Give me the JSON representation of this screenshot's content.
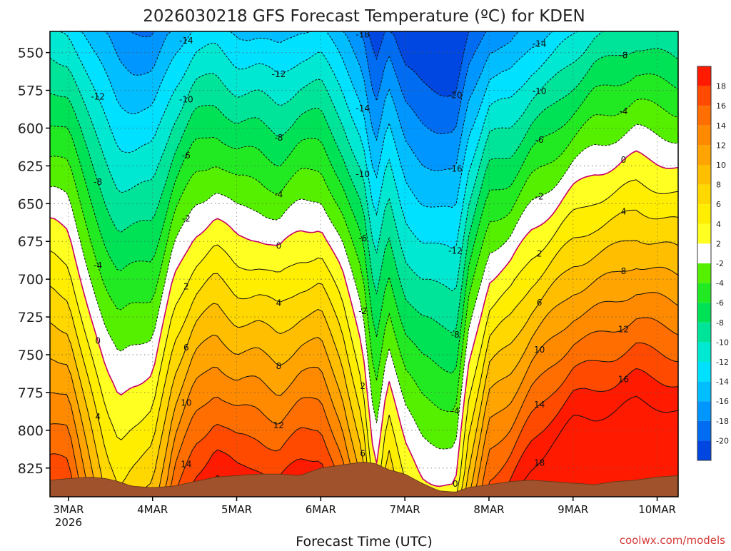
{
  "chart_data": {
    "type": "heatmap",
    "title": "2026030218 GFS Forecast Temperature (ºC) for KDEN",
    "xlabel": "Forecast Time (UTC)",
    "ylabel": "",
    "credit": "coolwx.com/models",
    "x_ticks": [
      {
        "value": 0,
        "label": "3MAR",
        "sub": "2026"
      },
      {
        "value": 1,
        "label": "4MAR",
        "sub": ""
      },
      {
        "value": 2,
        "label": "5MAR",
        "sub": ""
      },
      {
        "value": 3,
        "label": "6MAR",
        "sub": ""
      },
      {
        "value": 4,
        "label": "7MAR",
        "sub": ""
      },
      {
        "value": 5,
        "label": "8MAR",
        "sub": ""
      },
      {
        "value": 6,
        "label": "9MAR",
        "sub": ""
      },
      {
        "value": 7,
        "label": "10MAR",
        "sub": ""
      }
    ],
    "xlim": [
      -0.22,
      7.25
    ],
    "y_ticks": [
      550,
      575,
      600,
      625,
      650,
      675,
      700,
      725,
      750,
      775,
      800,
      825
    ],
    "ylim": [
      536,
      844
    ],
    "y_units": "hPa",
    "x": [
      -0.2,
      0.0,
      0.25,
      0.45,
      0.6,
      0.75,
      1.0,
      1.25,
      1.5,
      1.75,
      2.0,
      2.25,
      2.5,
      2.75,
      3.0,
      3.25,
      3.5,
      3.65,
      3.8,
      4.0,
      4.2,
      4.4,
      4.6,
      4.75,
      5.0,
      5.25,
      5.5,
      5.75,
      6.0,
      6.25,
      6.5,
      6.75,
      7.0,
      7.25
    ],
    "surface_hPa": [
      833,
      832,
      831,
      832,
      834,
      837,
      838,
      837,
      834,
      831,
      830,
      829,
      829,
      830,
      825,
      823,
      821,
      822,
      826,
      829,
      835,
      840,
      841,
      838,
      836,
      834,
      833,
      834,
      835,
      836,
      834,
      833,
      831,
      830
    ],
    "freezing_level_hPa": [
      662,
      668,
      720,
      762,
      780,
      770,
      762,
      700,
      670,
      660,
      672,
      672,
      680,
      668,
      665,
      695,
      745,
      825,
      765,
      810,
      830,
      835,
      838,
      760,
      700,
      690,
      668,
      655,
      640,
      630,
      625,
      618,
      622,
      626
    ],
    "gradient_hPa_per_C": [
      11.0,
      11.0,
      12.5,
      14.0,
      14.0,
      13.0,
      12.5,
      10.5,
      10.0,
      9.5,
      9.5,
      9.5,
      9.5,
      9.5,
      9.5,
      10.0,
      11.5,
      13.5,
      12.0,
      12.5,
      13.0,
      13.0,
      13.0,
      11.0,
      9.5,
      9.0,
      8.8,
      8.5,
      8.5,
      9.0,
      9.0,
      9.0,
      9.0,
      9.0
    ],
    "contour_levels_C": [
      -20,
      -18,
      -16,
      -14,
      -12,
      -10,
      -8,
      -6,
      -4,
      -2,
      0,
      2,
      4,
      6,
      8,
      10,
      12,
      14,
      16,
      18
    ],
    "colorbar": [
      {
        "label": "18",
        "color": "#ff1a00"
      },
      {
        "label": "16",
        "color": "#ff4a00"
      },
      {
        "label": "14",
        "color": "#ff6e00"
      },
      {
        "label": "12",
        "color": "#ff8a00"
      },
      {
        "label": "10",
        "color": "#ffa400"
      },
      {
        "label": "8",
        "color": "#ffbe00"
      },
      {
        "label": "6",
        "color": "#ffd800"
      },
      {
        "label": "4",
        "color": "#ffee00"
      },
      {
        "label": "2",
        "color": "#ffff22"
      },
      {
        "label": "-2",
        "color": "#ffffff"
      },
      {
        "label": "-4",
        "color": "#55f000"
      },
      {
        "label": "-6",
        "color": "#22ea22"
      },
      {
        "label": "-8",
        "color": "#00e255"
      },
      {
        "label": "-10",
        "color": "#00e49a"
      },
      {
        "label": "-12",
        "color": "#00e8d2"
      },
      {
        "label": "-14",
        "color": "#00e0ff"
      },
      {
        "label": "-16",
        "color": "#00beff"
      },
      {
        "label": "-18",
        "color": "#0096ff"
      },
      {
        "label": "-20",
        "color": "#006cf2"
      },
      {
        "label": "",
        "color": "#0046e0"
      }
    ],
    "ground_color": "#a0522d",
    "freezing_line_color": "#c8006a"
  }
}
